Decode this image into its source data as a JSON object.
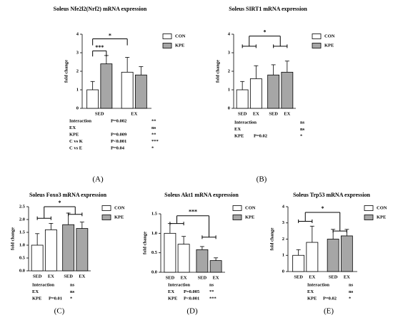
{
  "chart_data": [
    {
      "type": "bar",
      "grouping": "category",
      "title": "Soleus Nfe2l2(Nrf2) mRNA expression",
      "y_label": "fold change",
      "panel_label": "(A)",
      "categories": [
        "SED",
        "EX"
      ],
      "ylim": [
        0,
        4
      ],
      "yticks": [
        0,
        1,
        2,
        3,
        4
      ],
      "series": [
        {
          "name": "CON",
          "color": "#ffffff",
          "values": [
            1.0,
            1.95
          ],
          "errors": [
            0.45,
            0.8
          ]
        },
        {
          "name": "KPE",
          "color": "#a6a6a6",
          "values": [
            2.4,
            1.8
          ],
          "errors": [
            0.45,
            0.45
          ]
        }
      ],
      "annotations": [
        "***",
        "*"
      ],
      "stats": [
        {
          "term": "Interaction",
          "p": "P=0.002",
          "sig": "**"
        },
        {
          "term": "EX",
          "sig": "ns"
        },
        {
          "term": "KPE",
          "p": "P=0.009",
          "sig": "**"
        },
        {
          "term": "C vs K",
          "p": "P<0.001",
          "sig": "***"
        },
        {
          "term": "C vs E",
          "p": "P=0.04",
          "sig": "*"
        }
      ]
    },
    {
      "type": "bar",
      "grouping": "series",
      "title": "Soleus SIRT1 mRNA expression",
      "y_label": "fold change",
      "panel_label": "(B)",
      "categories": [
        "SED",
        "EX"
      ],
      "ylim": [
        0,
        4
      ],
      "yticks": [
        0,
        1,
        2,
        3,
        4
      ],
      "series": [
        {
          "name": "CON",
          "color": "#ffffff",
          "values": [
            1.0,
            1.6
          ],
          "errors": [
            0.45,
            0.7
          ]
        },
        {
          "name": "KPE",
          "color": "#a6a6a6",
          "values": [
            1.8,
            1.95
          ],
          "errors": [
            0.55,
            0.6
          ]
        }
      ],
      "annotations": [
        "*"
      ],
      "stats": [
        {
          "term": "Interaction",
          "sig": "ns"
        },
        {
          "term": "EX",
          "sig": "ns"
        },
        {
          "term": "KPE",
          "p": "P=0.02",
          "sig": "*"
        }
      ]
    },
    {
      "type": "bar",
      "grouping": "series",
      "title": "Soleus Foxo3 mRNA expression",
      "y_label": "fold change",
      "panel_label": "(C)",
      "categories": [
        "SED",
        "EX"
      ],
      "ylim": [
        0,
        2.5
      ],
      "yticks": [
        {
          "value": 0,
          "label": "0.0"
        },
        0.5,
        {
          "value": 1,
          "label": "1.0"
        },
        1.5,
        {
          "value": 2,
          "label": "2.0"
        },
        2.5
      ],
      "series": [
        {
          "name": "CON",
          "color": "#ffffff",
          "values": [
            1.0,
            1.6
          ],
          "errors": [
            0.45,
            0.25
          ]
        },
        {
          "name": "KPE",
          "color": "#a6a6a6",
          "values": [
            1.8,
            1.65
          ],
          "errors": [
            0.45,
            0.25
          ]
        }
      ],
      "annotations": [
        "*"
      ],
      "stats": [
        {
          "term": "Interaction",
          "sig": "ns"
        },
        {
          "term": "EX",
          "sig": "ns"
        },
        {
          "term": "KPE",
          "p": "P=0.01",
          "sig": "*"
        }
      ]
    },
    {
      "type": "bar",
      "grouping": "series",
      "title": "Soleus Akt1 mRNA expression",
      "y_label": "fold change",
      "panel_label": "(D)",
      "categories": [
        "SED",
        "EX"
      ],
      "ylim": [
        0,
        1.5
      ],
      "yticks": [
        {
          "value": 0,
          "label": "0.0"
        },
        0.5,
        {
          "value": 1,
          "label": "1.0"
        },
        1.5
      ],
      "series": [
        {
          "name": "CON",
          "color": "#ffffff",
          "values": [
            1.0,
            0.72
          ],
          "errors": [
            0.25,
            0.2
          ]
        },
        {
          "name": "KPE",
          "color": "#a6a6a6",
          "values": [
            0.58,
            0.3
          ],
          "errors": [
            0.08,
            0.07
          ]
        }
      ],
      "annotations": [
        "***"
      ],
      "stats": [
        {
          "term": "Interaction",
          "sig": "ns"
        },
        {
          "term": "EX",
          "p": "P=0.005",
          "sig": "**"
        },
        {
          "term": "KPE",
          "p": "P<0.001",
          "sig": "***"
        }
      ]
    },
    {
      "type": "bar",
      "grouping": "series",
      "title": "Soleus Trp53 mRNA expression",
      "y_label": "fold change",
      "panel_label": "(E)",
      "categories": [
        "SED",
        "EX"
      ],
      "ylim": [
        0,
        4
      ],
      "yticks": [
        0,
        1,
        2,
        3,
        4
      ],
      "series": [
        {
          "name": "CON",
          "color": "#ffffff",
          "values": [
            1.0,
            1.8
          ],
          "errors": [
            0.35,
            1.0
          ]
        },
        {
          "name": "KPE",
          "color": "#a6a6a6",
          "values": [
            2.0,
            2.2
          ],
          "errors": [
            0.6,
            0.4
          ]
        }
      ],
      "annotations": [
        "*"
      ],
      "stats": [
        {
          "term": "Interaction",
          "sig": "ns"
        },
        {
          "term": "EX",
          "sig": "ns"
        },
        {
          "term": "KPE",
          "p": "P=0.02",
          "sig": "*"
        }
      ]
    }
  ]
}
